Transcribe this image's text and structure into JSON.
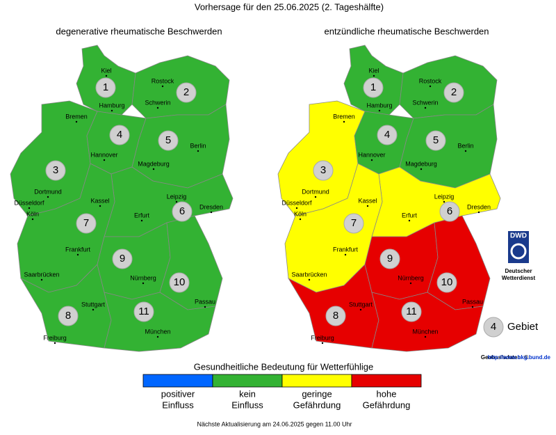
{
  "header": {
    "title": "Vorhersage für den 25.06.2025 (2. Tageshälfte)"
  },
  "maps": [
    {
      "title": "degenerative rheumatische Beschwerden",
      "regions": [
        {
          "label": "1",
          "color": "#33b233"
        },
        {
          "label": "2",
          "color": "#33b233"
        },
        {
          "label": "3",
          "color": "#33b233"
        },
        {
          "label": "4",
          "color": "#33b233"
        },
        {
          "label": "5",
          "color": "#33b233"
        },
        {
          "label": "6",
          "color": "#33b233"
        },
        {
          "label": "7",
          "color": "#33b233"
        },
        {
          "label": "8",
          "color": "#33b233"
        },
        {
          "label": "9",
          "color": "#33b233"
        },
        {
          "label": "10",
          "color": "#33b233"
        },
        {
          "label": "11",
          "color": "#33b233"
        }
      ]
    },
    {
      "title": "entzündliche rheumatische Beschwerden",
      "regions": [
        {
          "label": "1",
          "color": "#33b233"
        },
        {
          "label": "2",
          "color": "#33b233"
        },
        {
          "label": "3",
          "color": "#ffff00"
        },
        {
          "label": "4",
          "color": "#33b233"
        },
        {
          "label": "5",
          "color": "#33b233"
        },
        {
          "label": "6",
          "color": "#ffff00"
        },
        {
          "label": "7",
          "color": "#ffff00"
        },
        {
          "label": "8",
          "color": "#e60000"
        },
        {
          "label": "9",
          "color": "#e60000"
        },
        {
          "label": "10",
          "color": "#e60000"
        },
        {
          "label": "11",
          "color": "#e60000"
        }
      ]
    }
  ],
  "cities": [
    "Kiel",
    "Rostock",
    "Hamburg",
    "Schwerin",
    "Bremen",
    "Hannover",
    "Berlin",
    "Magdeburg",
    "Dortmund",
    "Düsseldorf",
    "Köln",
    "Kassel",
    "Leipzig",
    "Dresden",
    "Erfurt",
    "Frankfurt",
    "Saarbrücken",
    "Nürnberg",
    "Passau",
    "Stuttgart",
    "München",
    "Freiburg"
  ],
  "legend": {
    "title": "Gesundheitliche Bedeutung für Wetterfühlige",
    "items": [
      {
        "lines": [
          "positiver",
          "Einfluss"
        ],
        "color": "#0066ff"
      },
      {
        "lines": [
          "kein",
          "Einfluss"
        ],
        "color": "#33b233"
      },
      {
        "lines": [
          "geringe",
          "Gefährdung"
        ],
        "color": "#ffff00"
      },
      {
        "lines": [
          "hohe",
          "Gefährdung"
        ],
        "color": "#e60000"
      }
    ]
  },
  "area_key": {
    "number": "4",
    "label": "Gebiet"
  },
  "logo": {
    "abbr": "DWD",
    "lines": [
      "Deutscher",
      "Wetterdienst"
    ]
  },
  "source": {
    "label": "Geobasisdaten: ©",
    "link": "http://www.bkg.bund.de"
  },
  "footer": "Nächste Aktualisierung am 24.06.2025 gegen 11.00 Uhr"
}
